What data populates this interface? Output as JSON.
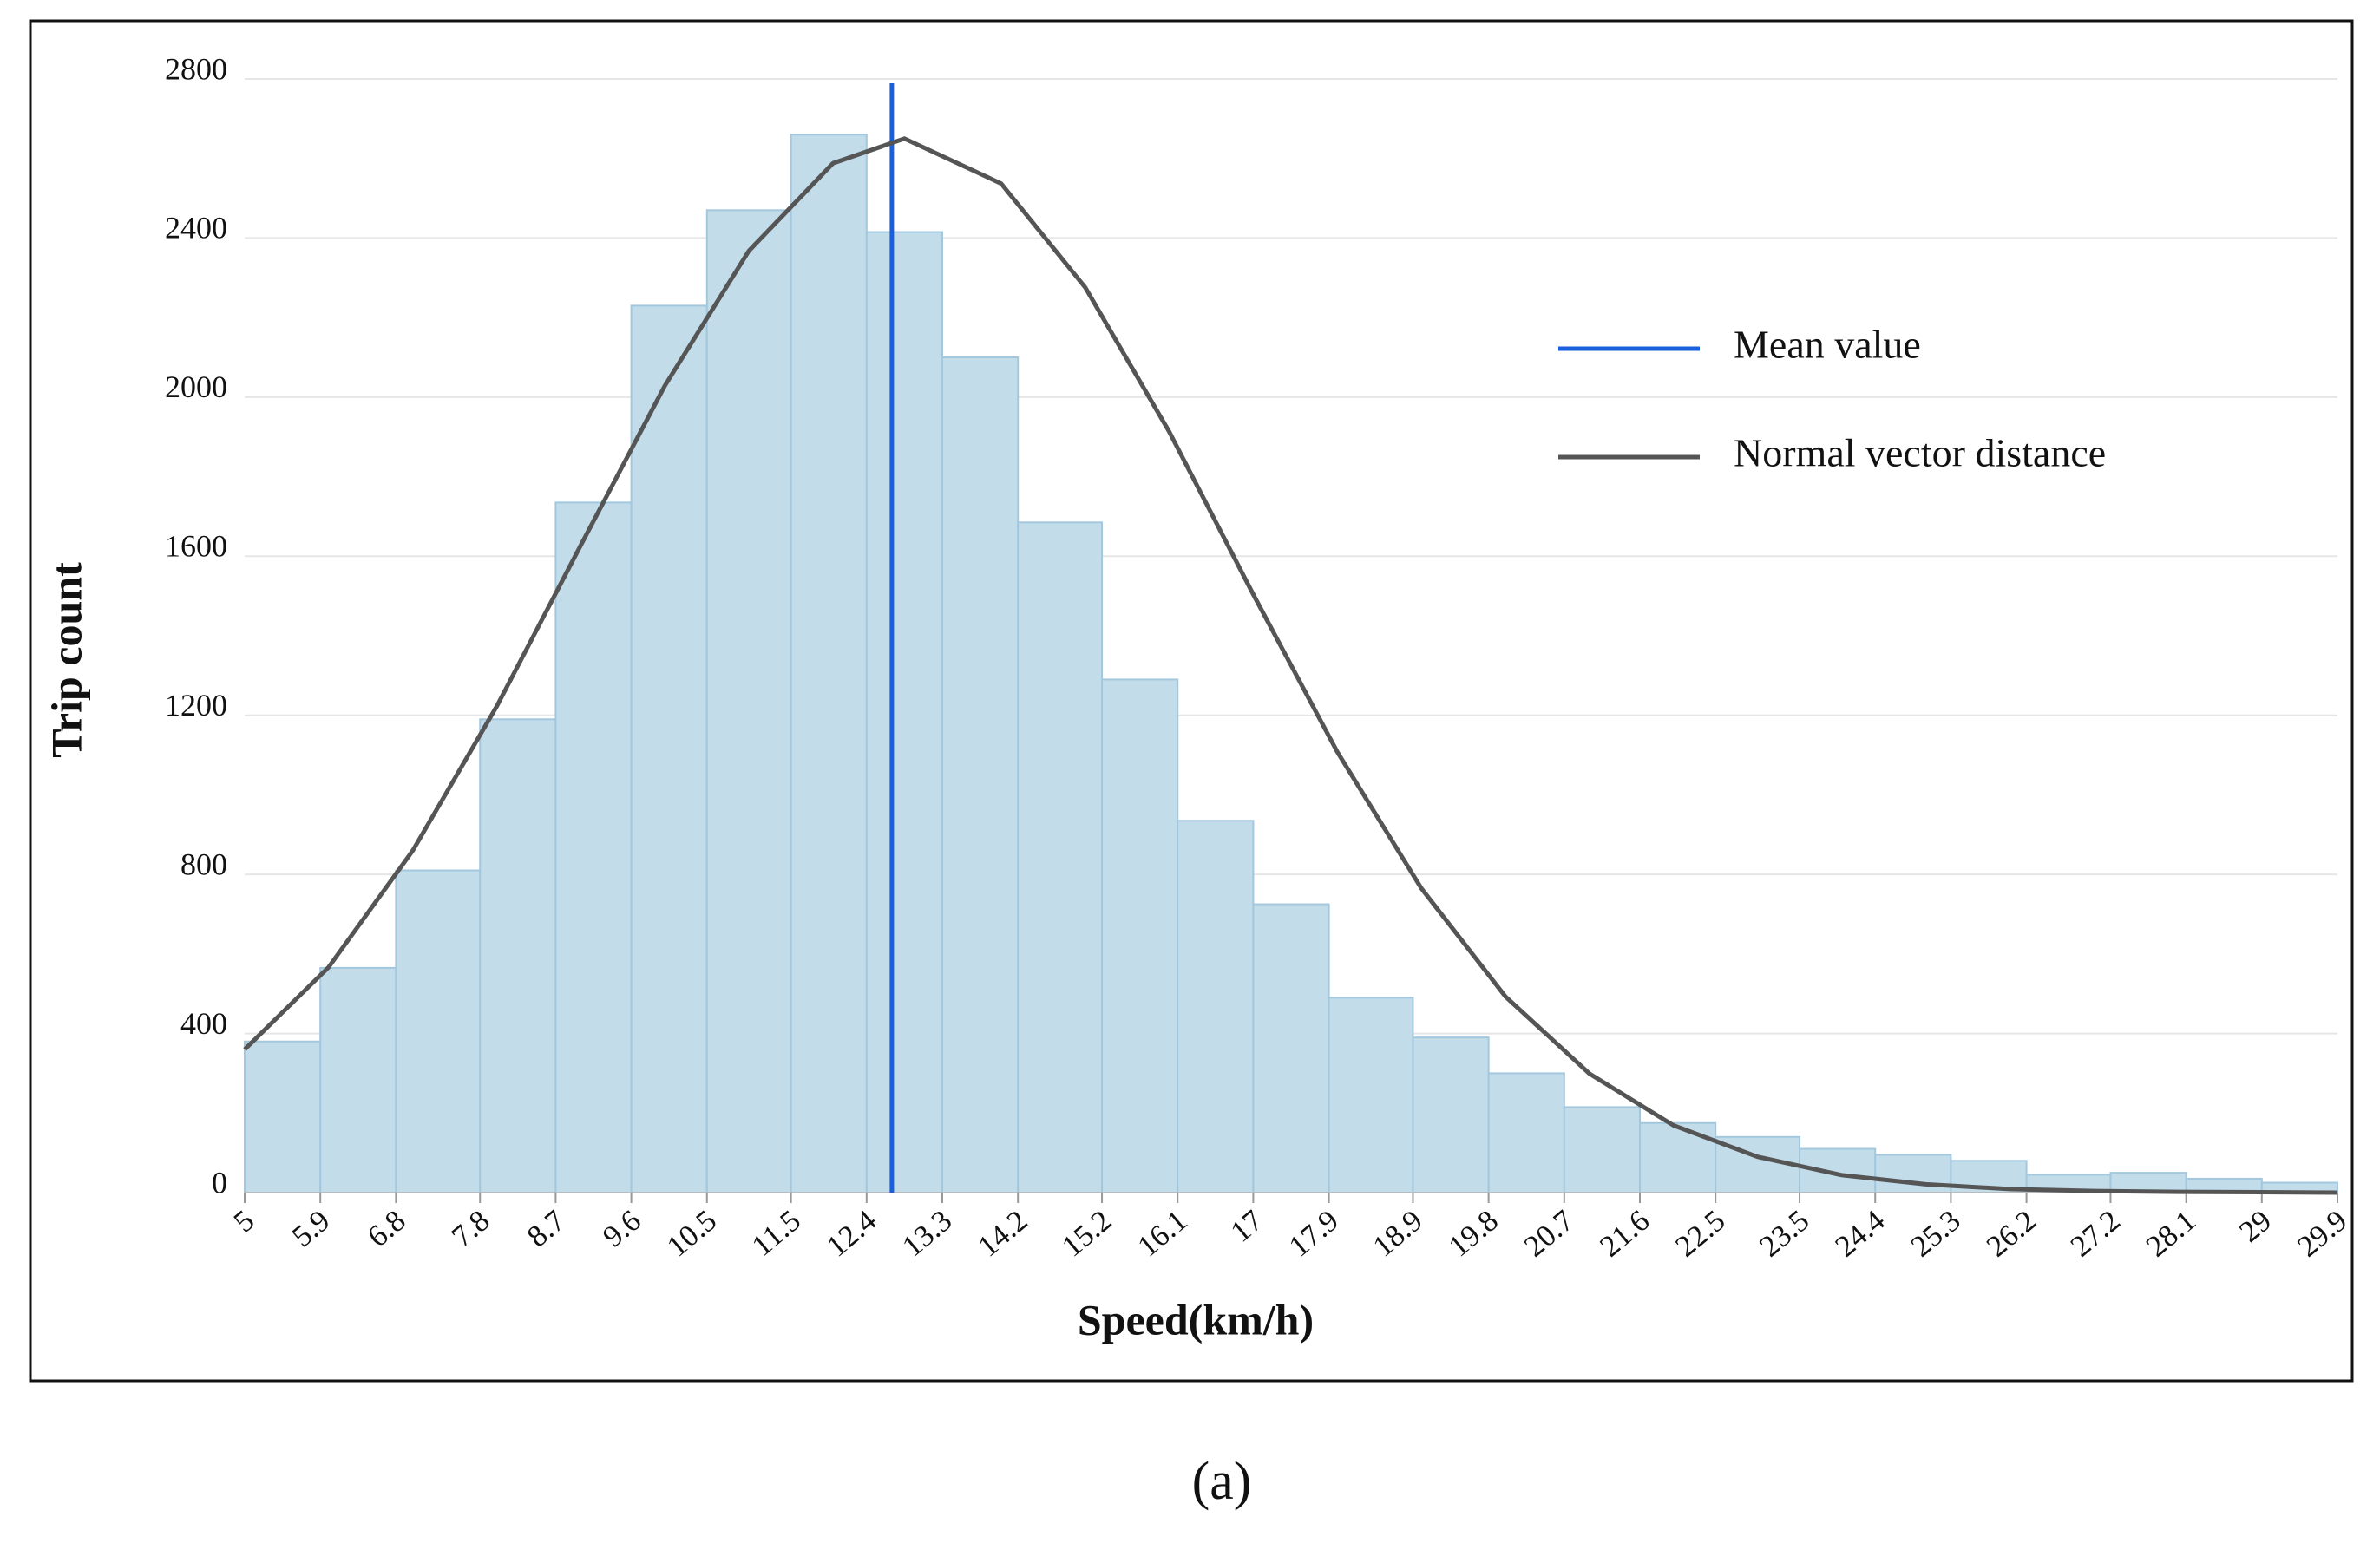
{
  "chart_data": {
    "type": "histogram",
    "xlabel": "Speed(km/h)",
    "ylabel": "Trip count",
    "bins": [
      5,
      5.9,
      6.8,
      7.8,
      8.7,
      9.6,
      10.5,
      11.5,
      12.4,
      13.3,
      14.2,
      15.2,
      16.1,
      17,
      17.9,
      18.9,
      19.8,
      20.7,
      21.6,
      22.5,
      23.5,
      24.4,
      25.3,
      26.2,
      27.2,
      28.1,
      29,
      29.9
    ],
    "counts": [
      380,
      565,
      810,
      1190,
      1735,
      2230,
      2470,
      2660,
      2415,
      2100,
      1685,
      1290,
      935,
      725,
      490,
      390,
      300,
      215,
      175,
      140,
      110,
      95,
      80,
      45,
      50,
      35,
      25
    ],
    "bar_color": "#c2dcea",
    "bar_edge": "#a3c8de",
    "xlim": [
      5,
      29.9
    ],
    "ylim": [
      0,
      2800
    ],
    "yticks": [
      0,
      400,
      800,
      1200,
      1600,
      2000,
      2400,
      2800
    ],
    "grid": true,
    "series": [
      {
        "name": "Mean value",
        "color": "#1a5fdc",
        "x": 12.7
      },
      {
        "name": "Normal vector distance",
        "color": "#555555",
        "x": [
          5,
          6,
          7,
          8,
          9,
          10,
          11,
          12,
          12.85,
          14,
          15,
          16,
          17,
          18,
          19,
          20,
          21,
          22,
          23,
          24,
          25,
          26,
          27,
          28,
          29,
          29.9
        ],
        "values": [
          360,
          567,
          860,
          1223,
          1628,
          2029,
          2368,
          2588,
          2650,
          2537,
          2276,
          1913,
          1504,
          1108,
          765,
          493,
          299,
          169,
          90,
          44,
          21,
          9,
          4,
          2,
          1,
          0
        ]
      }
    ],
    "legend": "upper right"
  },
  "caption": "(a)"
}
